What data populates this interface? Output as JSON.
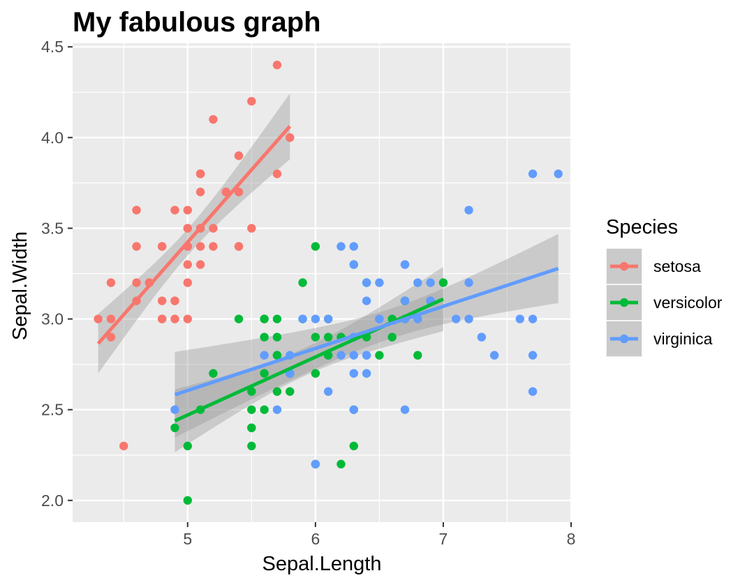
{
  "chart_data": {
    "type": "scatter",
    "title": "My fabulous graph",
    "xlabel": "Sepal.Length",
    "ylabel": "Sepal.Width",
    "xlim": [
      4.1,
      8.0
    ],
    "ylim": [
      1.88,
      4.52
    ],
    "x_ticks": [
      5,
      6,
      7,
      8
    ],
    "x_tick_labels": [
      "5",
      "6",
      "7",
      "8"
    ],
    "y_ticks": [
      2.0,
      2.5,
      3.0,
      3.5,
      4.0,
      4.5
    ],
    "y_tick_labels": [
      "2.0",
      "2.5",
      "3.0",
      "3.5",
      "4.0",
      "4.5"
    ],
    "grid": true,
    "legend_title": "Species",
    "legend_position": "right",
    "series": [
      {
        "name": "setosa",
        "color": "#F8766D",
        "points": [
          [
            5.1,
            3.5
          ],
          [
            4.9,
            3.0
          ],
          [
            4.7,
            3.2
          ],
          [
            4.6,
            3.1
          ],
          [
            5.0,
            3.6
          ],
          [
            5.4,
            3.9
          ],
          [
            4.6,
            3.4
          ],
          [
            5.0,
            3.4
          ],
          [
            4.4,
            2.9
          ],
          [
            4.9,
            3.1
          ],
          [
            5.4,
            3.7
          ],
          [
            4.8,
            3.4
          ],
          [
            4.8,
            3.0
          ],
          [
            4.3,
            3.0
          ],
          [
            5.8,
            4.0
          ],
          [
            5.7,
            4.4
          ],
          [
            5.4,
            3.9
          ],
          [
            5.1,
            3.5
          ],
          [
            5.7,
            3.8
          ],
          [
            5.1,
            3.8
          ],
          [
            5.4,
            3.4
          ],
          [
            5.1,
            3.7
          ],
          [
            4.6,
            3.6
          ],
          [
            5.1,
            3.3
          ],
          [
            4.8,
            3.4
          ],
          [
            5.0,
            3.0
          ],
          [
            5.0,
            3.4
          ],
          [
            5.2,
            3.5
          ],
          [
            5.2,
            3.4
          ],
          [
            4.7,
            3.2
          ],
          [
            4.8,
            3.1
          ],
          [
            5.4,
            3.4
          ],
          [
            5.2,
            4.1
          ],
          [
            5.5,
            4.2
          ],
          [
            4.9,
            3.1
          ],
          [
            5.0,
            3.2
          ],
          [
            5.5,
            3.5
          ],
          [
            4.9,
            3.6
          ],
          [
            4.4,
            3.0
          ],
          [
            5.1,
            3.4
          ],
          [
            5.0,
            3.5
          ],
          [
            4.5,
            2.3
          ],
          [
            4.4,
            3.2
          ],
          [
            5.0,
            3.5
          ],
          [
            5.1,
            3.8
          ],
          [
            4.8,
            3.0
          ],
          [
            5.1,
            3.8
          ],
          [
            4.6,
            3.2
          ],
          [
            5.3,
            3.7
          ],
          [
            5.0,
            3.3
          ]
        ],
        "fit": {
          "slope": 0.7985,
          "intercept": -0.5694,
          "x_range": [
            4.3,
            5.8
          ]
        }
      },
      {
        "name": "versicolor",
        "color": "#00BA38",
        "points": [
          [
            7.0,
            3.2
          ],
          [
            6.4,
            3.2
          ],
          [
            6.9,
            3.1
          ],
          [
            5.5,
            2.3
          ],
          [
            6.5,
            2.8
          ],
          [
            5.7,
            2.8
          ],
          [
            6.3,
            3.3
          ],
          [
            4.9,
            2.4
          ],
          [
            6.6,
            2.9
          ],
          [
            5.2,
            2.7
          ],
          [
            5.0,
            2.0
          ],
          [
            5.9,
            3.0
          ],
          [
            6.0,
            2.2
          ],
          [
            6.1,
            2.9
          ],
          [
            5.6,
            2.9
          ],
          [
            6.7,
            3.1
          ],
          [
            5.6,
            3.0
          ],
          [
            5.8,
            2.7
          ],
          [
            6.2,
            2.2
          ],
          [
            5.6,
            2.5
          ],
          [
            5.9,
            3.2
          ],
          [
            6.1,
            2.8
          ],
          [
            6.3,
            2.5
          ],
          [
            6.1,
            2.8
          ],
          [
            6.4,
            2.9
          ],
          [
            6.6,
            3.0
          ],
          [
            6.8,
            2.8
          ],
          [
            6.7,
            3.0
          ],
          [
            6.0,
            2.9
          ],
          [
            5.7,
            2.6
          ],
          [
            5.5,
            2.4
          ],
          [
            5.5,
            2.4
          ],
          [
            5.8,
            2.7
          ],
          [
            6.0,
            2.7
          ],
          [
            5.4,
            3.0
          ],
          [
            6.0,
            3.4
          ],
          [
            6.7,
            3.1
          ],
          [
            6.3,
            2.3
          ],
          [
            5.6,
            3.0
          ],
          [
            5.5,
            2.5
          ],
          [
            5.5,
            2.6
          ],
          [
            6.1,
            3.0
          ],
          [
            5.8,
            2.6
          ],
          [
            5.0,
            2.3
          ],
          [
            5.6,
            2.7
          ],
          [
            5.7,
            3.0
          ],
          [
            5.7,
            2.9
          ],
          [
            6.2,
            2.9
          ],
          [
            5.1,
            2.5
          ],
          [
            5.7,
            2.8
          ]
        ],
        "fit": {
          "slope": 0.3197,
          "intercept": 0.8721,
          "x_range": [
            4.9,
            7.0
          ]
        }
      },
      {
        "name": "virginica",
        "color": "#619CFF",
        "points": [
          [
            6.3,
            3.3
          ],
          [
            5.8,
            2.7
          ],
          [
            7.1,
            3.0
          ],
          [
            6.3,
            2.9
          ],
          [
            6.5,
            3.0
          ],
          [
            7.6,
            3.0
          ],
          [
            4.9,
            2.5
          ],
          [
            7.3,
            2.9
          ],
          [
            6.7,
            2.5
          ],
          [
            7.2,
            3.6
          ],
          [
            6.5,
            3.2
          ],
          [
            6.4,
            2.7
          ],
          [
            6.8,
            3.0
          ],
          [
            5.7,
            2.5
          ],
          [
            5.8,
            2.8
          ],
          [
            6.4,
            3.2
          ],
          [
            6.5,
            3.0
          ],
          [
            7.7,
            3.8
          ],
          [
            7.7,
            2.6
          ],
          [
            6.0,
            2.2
          ],
          [
            6.9,
            3.2
          ],
          [
            5.6,
            2.8
          ],
          [
            7.7,
            2.8
          ],
          [
            6.3,
            2.7
          ],
          [
            6.7,
            3.3
          ],
          [
            7.2,
            3.2
          ],
          [
            6.2,
            2.8
          ],
          [
            6.1,
            3.0
          ],
          [
            6.4,
            2.8
          ],
          [
            7.2,
            3.0
          ],
          [
            7.4,
            2.8
          ],
          [
            7.9,
            3.8
          ],
          [
            6.4,
            2.8
          ],
          [
            6.3,
            2.8
          ],
          [
            6.1,
            2.6
          ],
          [
            7.7,
            3.0
          ],
          [
            6.3,
            3.4
          ],
          [
            6.4,
            3.1
          ],
          [
            6.0,
            3.0
          ],
          [
            6.9,
            3.1
          ],
          [
            6.7,
            3.1
          ],
          [
            6.9,
            3.1
          ],
          [
            5.8,
            2.7
          ],
          [
            6.8,
            3.2
          ],
          [
            6.7,
            3.3
          ],
          [
            6.7,
            3.0
          ],
          [
            6.3,
            2.5
          ],
          [
            6.5,
            3.0
          ],
          [
            6.2,
            3.4
          ],
          [
            5.9,
            3.0
          ]
        ],
        "fit": {
          "slope": 0.2319,
          "intercept": 1.4463,
          "x_range": [
            4.9,
            7.9
          ]
        }
      }
    ]
  }
}
